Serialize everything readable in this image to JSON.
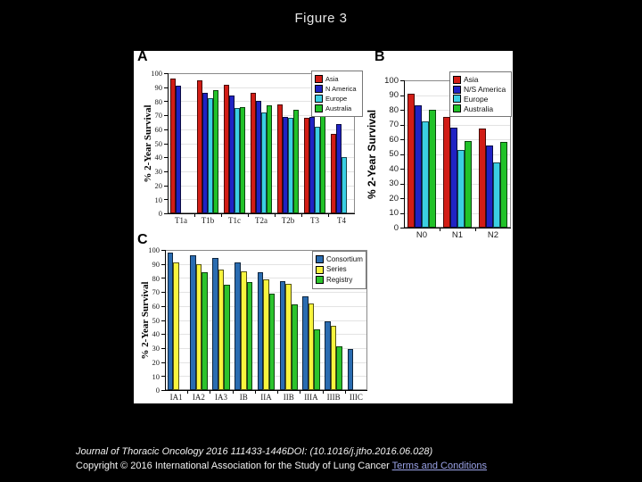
{
  "page": {
    "title": "Figure 3",
    "background": "#000000",
    "figure_bg": "#ffffff"
  },
  "footer": {
    "line1": "Journal of Thoracic Oncology 2016 111433-1446DOI: (10.1016/j.jtho.2016.06.028)",
    "line2": "Copyright © 2016 International Association for the Study of Lung Cancer ",
    "link": "Terms and Conditions",
    "link_color": "#9ba3e8"
  },
  "chart_data": [
    {
      "id": "A",
      "type": "bar",
      "panel_label": "A",
      "ylabel": "% 2-Year Survival",
      "ylim": [
        0,
        100
      ],
      "ytick_step": 10,
      "grid": true,
      "legend_position": "top-right",
      "categories": [
        "T1a",
        "T1b",
        "T1c",
        "T2a",
        "T2b",
        "T3",
        "T4"
      ],
      "series": [
        {
          "name": "Asia",
          "color": "#d21d16",
          "values": [
            96,
            95,
            92,
            86,
            78,
            68,
            57
          ]
        },
        {
          "name": "N America",
          "color": "#2023c4",
          "values": [
            91,
            86,
            84,
            80,
            69,
            69,
            64
          ]
        },
        {
          "name": "Europe",
          "color": "#3bcfe3",
          "values": [
            null,
            82,
            75,
            72,
            68,
            62,
            40
          ]
        },
        {
          "name": "Australia",
          "color": "#21c228",
          "values": [
            null,
            88,
            76,
            77,
            74,
            71,
            null
          ]
        }
      ]
    },
    {
      "id": "B",
      "type": "bar",
      "panel_label": "B",
      "ylabel": "% 2-Year Survival",
      "ylim": [
        0,
        100
      ],
      "ytick_step": 10,
      "grid": true,
      "legend_position": "top-right",
      "categories": [
        "N0",
        "N1",
        "N2"
      ],
      "series": [
        {
          "name": "Asia",
          "color": "#d21d16",
          "values": [
            91,
            75,
            67
          ]
        },
        {
          "name": "N/S America",
          "color": "#2023c4",
          "values": [
            83,
            68,
            56
          ]
        },
        {
          "name": "Europe",
          "color": "#3bcfe3",
          "values": [
            72,
            53,
            44
          ]
        },
        {
          "name": "Australia",
          "color": "#21c228",
          "values": [
            80,
            59,
            58
          ]
        }
      ]
    },
    {
      "id": "C",
      "type": "bar",
      "panel_label": "C",
      "ylabel": "% 2-Year Survival",
      "ylim": [
        0,
        100
      ],
      "ytick_step": 10,
      "grid": true,
      "legend_position": "top-right",
      "categories": [
        "IA1",
        "IA2",
        "IA3",
        "IB",
        "IIA",
        "IIB",
        "IIIA",
        "IIIB",
        "IIIC"
      ],
      "series": [
        {
          "name": "Consortium",
          "color": "#2a6cb1",
          "values": [
            98,
            96,
            94,
            91,
            84,
            78,
            67,
            49,
            29
          ]
        },
        {
          "name": "Series",
          "color": "#f8f43e",
          "values": [
            91,
            90,
            86,
            85,
            79,
            76,
            62,
            46,
            null
          ]
        },
        {
          "name": "Registry",
          "color": "#2cc32c",
          "values": [
            null,
            84,
            75,
            77,
            69,
            61,
            43,
            31,
            null
          ]
        }
      ]
    }
  ]
}
